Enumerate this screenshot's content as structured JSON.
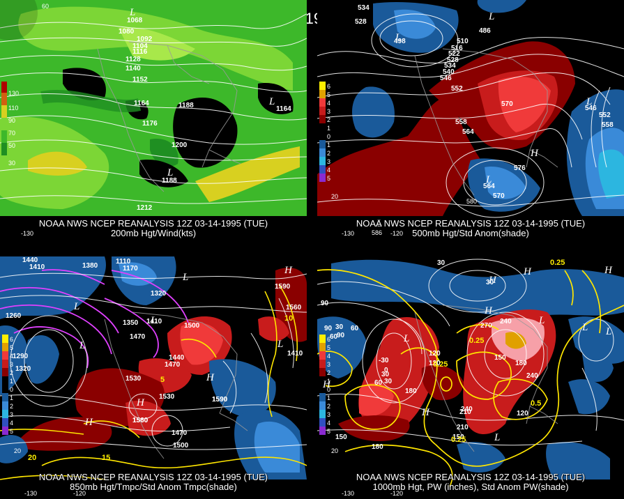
{
  "title": "12Z 03-14-1995 (TUE)",
  "panels": {
    "tl": {
      "caption_1": "NOAA NWS NCEP REANALYSIS 12Z 03-14-1995 (TUE)",
      "caption_2": "200mb Hgt/Wind(kts)",
      "legend": [
        "130",
        "110",
        "90",
        "70",
        "50",
        "30"
      ],
      "contour_labels": [
        "1068",
        "1080",
        "1092",
        "1104",
        "1116",
        "1128",
        "1140",
        "1152",
        "1164",
        "1176",
        "1188",
        "1200",
        "1188",
        "1164",
        "1212"
      ],
      "highs_lows": [
        "L",
        "L",
        "L"
      ],
      "lon_labels": [
        "60",
        "-130"
      ]
    },
    "tr": {
      "caption_1": "NOAA NWS NCEP REANALYSIS 12Z 03-14-1995 (TUE)",
      "caption_2": "500mb Hgt/Std Anom(shade)",
      "legend": [
        "6",
        "5",
        "4",
        "3",
        "2",
        "1",
        "0",
        "1",
        "2",
        "3",
        "4",
        "5"
      ],
      "contour_labels": [
        "534",
        "528",
        "498",
        "486",
        "510",
        "516",
        "522",
        "528",
        "534",
        "540",
        "546",
        "552",
        "558",
        "564",
        "570",
        "576",
        "564",
        "570",
        "552",
        "558",
        "546"
      ],
      "highs_lows": [
        "L",
        "L",
        "L",
        "L",
        "H",
        "L"
      ],
      "lon_labels": [
        "20",
        "-130",
        "-120",
        "586",
        "580"
      ]
    },
    "bl": {
      "caption_1": "NOAA NWS NCEP REANALYSIS 12Z 03-14-1995 (TUE)",
      "caption_2": "850mb Hgt/Tmpc/Std Anom Tmpc(shade)",
      "legend": [
        "6",
        "5",
        "4",
        "3",
        "2",
        "1",
        "0",
        "1",
        "2",
        "3",
        "4",
        "5"
      ],
      "contour_labels": [
        "1440",
        "1410",
        "1380",
        "1110",
        "1170",
        "1320",
        "1350",
        "1260",
        "1290",
        "1320",
        "1410",
        "1470",
        "1500",
        "1440",
        "1470",
        "1530",
        "1560",
        "1590",
        "1560",
        "1530",
        "1590",
        "1470",
        "1500",
        "1560",
        "1590",
        "1410"
      ],
      "yellow_labels": [
        "10",
        "15",
        "20",
        "5"
      ],
      "highs_lows": [
        "H",
        "L",
        "L",
        "L",
        "L",
        "H",
        "H",
        "H",
        "L"
      ],
      "lon_labels": [
        "20",
        "-130",
        "-120"
      ]
    },
    "br": {
      "caption_1": "NOAA NWS NCEP REANALYSIS 12Z 03-14-1995 (TUE)",
      "caption_2": "1000mb Hgt, PW (inches), Std Anom PW(shade)",
      "legend": [
        "6",
        "5",
        "4",
        "3",
        "2",
        "1",
        "0",
        "1",
        "2",
        "3",
        "4",
        "5"
      ],
      "contour_labels": [
        "30",
        "90",
        "30",
        "60",
        "30",
        "90",
        "0",
        "60",
        "30",
        "-30",
        "120",
        "150",
        "180",
        "210",
        "240",
        "270",
        "150",
        "180",
        "240",
        "210",
        "240",
        "120",
        "150",
        "60",
        "30",
        "180",
        "90",
        "120"
      ],
      "yellow_labels": [
        "0.25",
        "0.25",
        "0.25",
        "0.5",
        "0.25"
      ],
      "highs_lows": [
        "H",
        "L",
        "H",
        "H",
        "L",
        "L",
        "H",
        "H",
        "L",
        "H",
        "L"
      ],
      "lon_labels": [
        "20",
        "-130",
        "-120"
      ]
    }
  },
  "colors": {
    "wind_light": "#7cd636",
    "wind_mid": "#3db82a",
    "wind_dark": "#1f8f22",
    "wind_yellow": "#d8d020",
    "anom_pos_dark": "#8a0000",
    "anom_pos": "#c81c1c",
    "anom_pos_bright": "#f03a3a",
    "anom_neg": "#1a5a9a",
    "anom_neg_light": "#3a8ad8",
    "anom_cyan": "#2cb6e0",
    "temp_contour": "#ffe600",
    "cold_contour": "#e040ff"
  }
}
